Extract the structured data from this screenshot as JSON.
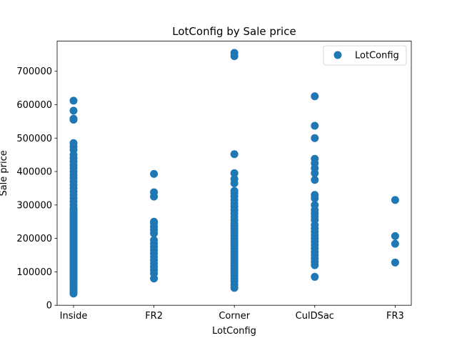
{
  "chart_data": {
    "type": "scatter",
    "title": "LotConfig by Sale price",
    "xlabel": "LotConfig",
    "ylabel": "Sale price",
    "categories": [
      "Inside",
      "FR2",
      "Corner",
      "CulDSac",
      "FR3"
    ],
    "ylim": [
      0,
      790000
    ],
    "yticks": [
      0,
      100000,
      200000,
      300000,
      400000,
      500000,
      600000,
      700000
    ],
    "legend": {
      "position": "top-right",
      "label": "LotConfig"
    },
    "grid": false,
    "color": "#1f77b4",
    "series": [
      {
        "name": "LotConfig",
        "points": [
          {
            "x": "Inside",
            "ys": [
              35000,
              40000,
              45000,
              52000,
              58000,
              62000,
              68000,
              75000,
              80000,
              85000,
              90000,
              95000,
              100000,
              105000,
              110000,
              115000,
              120000,
              125000,
              130000,
              135000,
              140000,
              145000,
              150000,
              155000,
              160000,
              165000,
              170000,
              175000,
              180000,
              185000,
              190000,
              195000,
              200000,
              205000,
              210000,
              215000,
              220000,
              225000,
              230000,
              235000,
              240000,
              245000,
              250000,
              255000,
              260000,
              265000,
              270000,
              275000,
              280000,
              285000,
              290000,
              300000,
              310000,
              320000,
              330000,
              340000,
              350000,
              360000,
              370000,
              380000,
              390000,
              400000,
              410000,
              420000,
              430000,
              440000,
              450000,
              465000,
              475000,
              485000,
              555000,
              558000,
              582000,
              612000
            ]
          },
          {
            "x": "FR2",
            "ys": [
              80000,
              95000,
              105000,
              115000,
              125000,
              135000,
              145000,
              155000,
              165000,
              175000,
              185000,
              195000,
              215000,
              225000,
              235000,
              245000,
              250000,
              325000,
              338000,
              393000
            ]
          },
          {
            "x": "Corner",
            "ys": [
              52000,
              62000,
              72000,
              80000,
              88000,
              95000,
              102000,
              110000,
              118000,
              125000,
              132000,
              140000,
              148000,
              155000,
              162000,
              170000,
              178000,
              185000,
              192000,
              200000,
              208000,
              215000,
              222000,
              230000,
              238000,
              245000,
              255000,
              265000,
              275000,
              285000,
              295000,
              305000,
              315000,
              325000,
              335000,
              342000,
              365000,
              378000,
              395000,
              452000,
              745000,
              755000
            ]
          },
          {
            "x": "CulDSac",
            "ys": [
              85000,
              120000,
              130000,
              140000,
              150000,
              160000,
              170000,
              180000,
              190000,
              200000,
              210000,
              220000,
              230000,
              240000,
              255000,
              265000,
              275000,
              285000,
              300000,
              320000,
              330000,
              375000,
              395000,
              410000,
              425000,
              438000,
              500000,
              537000,
              625000
            ]
          },
          {
            "x": "FR3",
            "ys": [
              128000,
              184000,
              207000,
              315000
            ]
          }
        ]
      }
    ]
  }
}
